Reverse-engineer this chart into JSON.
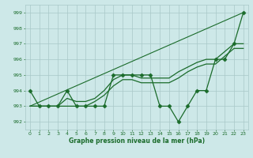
{
  "bg_color": "#cde8e8",
  "grid_color": "#a8c8c8",
  "line_color": "#1a6b2a",
  "xlabel": "Graphe pression niveau de la mer (hPa)",
  "ylim": [
    991.5,
    999.5
  ],
  "xlim": [
    -0.5,
    23.5
  ],
  "yticks": [
    992,
    993,
    994,
    995,
    996,
    997,
    998,
    999
  ],
  "xticks": [
    0,
    1,
    2,
    3,
    4,
    5,
    6,
    7,
    8,
    9,
    10,
    11,
    12,
    13,
    14,
    15,
    16,
    17,
    18,
    19,
    20,
    21,
    22,
    23
  ],
  "series": [
    {
      "name": "line_diagonal",
      "x": [
        0,
        23
      ],
      "y": [
        993.0,
        999.0
      ],
      "marker": null,
      "linewidth": 0.8
    },
    {
      "name": "line_smooth_upper",
      "x": [
        0,
        1,
        2,
        3,
        4,
        5,
        6,
        7,
        8,
        9,
        10,
        11,
        12,
        13,
        14,
        15,
        16,
        17,
        18,
        19,
        20,
        21,
        22,
        23
      ],
      "y": [
        993.0,
        993.0,
        993.0,
        993.0,
        993.5,
        993.3,
        993.3,
        993.5,
        994.0,
        994.7,
        995.0,
        995.0,
        994.8,
        994.8,
        994.8,
        994.8,
        995.2,
        995.5,
        995.8,
        996.0,
        996.0,
        996.5,
        997.0,
        997.0
      ],
      "marker": null,
      "linewidth": 0.9
    },
    {
      "name": "line_smooth_lower",
      "x": [
        0,
        1,
        2,
        3,
        4,
        5,
        6,
        7,
        8,
        9,
        10,
        11,
        12,
        13,
        14,
        15,
        16,
        17,
        18,
        19,
        20,
        21,
        22,
        23
      ],
      "y": [
        993.0,
        993.0,
        993.0,
        993.0,
        993.0,
        993.0,
        993.0,
        993.3,
        993.7,
        994.3,
        994.7,
        994.7,
        994.5,
        994.5,
        994.5,
        994.5,
        994.8,
        995.2,
        995.5,
        995.7,
        995.7,
        996.2,
        996.7,
        996.7
      ],
      "marker": null,
      "linewidth": 0.9
    },
    {
      "name": "line_markers_zigzag",
      "x": [
        0,
        1,
        2,
        3,
        4,
        5,
        6,
        7,
        8,
        9,
        10,
        11,
        12,
        13,
        14,
        15,
        16,
        17,
        18,
        19,
        20,
        21,
        22,
        23
      ],
      "y": [
        994.0,
        993.0,
        993.0,
        993.0,
        994.0,
        993.0,
        993.0,
        993.0,
        993.0,
        995.0,
        995.0,
        995.0,
        995.0,
        995.0,
        993.0,
        993.0,
        992.0,
        993.0,
        994.0,
        994.0,
        996.0,
        996.0,
        997.0,
        999.0
      ],
      "marker": "D",
      "markersize": 2.5,
      "linewidth": 0.9
    }
  ]
}
